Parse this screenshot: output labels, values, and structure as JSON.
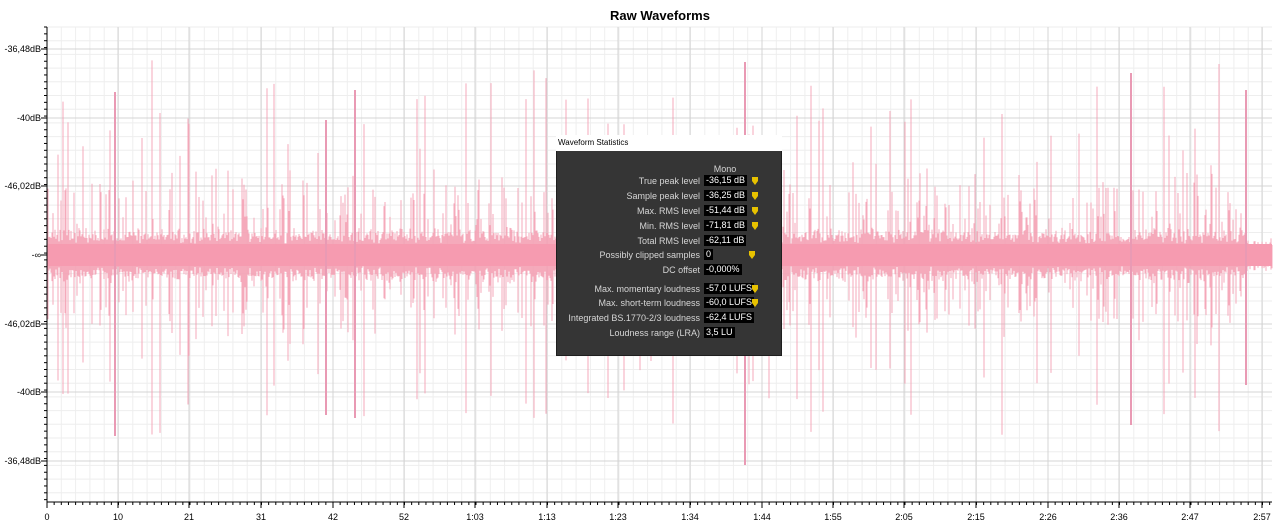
{
  "window_title": "Raw Waveforms",
  "chart_data": {
    "type": "area",
    "title": "Raw Waveforms",
    "xlabel": "",
    "ylabel": "",
    "y_tick_labels": [
      "-36,48dB",
      "-40dB",
      "-46,02dB",
      "-∞",
      "-46,02dB",
      "-40dB",
      "-36,48dB"
    ],
    "x_tick_labels": [
      "0",
      "10",
      "21",
      "31",
      "42",
      "52",
      "1:03",
      "1:13",
      "1:23",
      "1:34",
      "1:44",
      "1:55",
      "2:05",
      "2:15",
      "2:26",
      "2:36",
      "2:47",
      "2:57"
    ],
    "x_range_seconds": [
      0,
      180
    ],
    "grid": true,
    "series": [
      {
        "color": "#f4a1b4"
      }
    ]
  },
  "stats": {
    "title": "Waveform Statistics",
    "column_header": "Mono",
    "warning_color": "#e8c200",
    "rows": [
      {
        "label": "True peak level",
        "value": "-36,15 dB",
        "warn": true
      },
      {
        "label": "Sample peak level",
        "value": "-36,25 dB",
        "warn": true
      },
      {
        "label": "Max. RMS level",
        "value": "-51,44 dB",
        "warn": true
      },
      {
        "label": "Min. RMS level",
        "value": "-71,81 dB",
        "warn": true
      },
      {
        "label": "Total RMS level",
        "value": "-62,11 dB",
        "warn": false
      },
      {
        "label": "Possibly clipped samples",
        "value": "0",
        "warn": true
      },
      {
        "label": "DC offset",
        "value": "-0,000%",
        "warn": false
      },
      {
        "label": "Max. momentary loudness",
        "value": "-57,0 LUFS",
        "warn": true
      },
      {
        "label": "Max. short-term loudness",
        "value": "-60,0 LUFS",
        "warn": true
      },
      {
        "label": "Integrated BS.1770-2/3 loudness",
        "value": "-62,4 LUFS",
        "warn": false
      },
      {
        "label": "Loudness range (LRA)",
        "value": "3,5 LU",
        "warn": false
      }
    ]
  }
}
